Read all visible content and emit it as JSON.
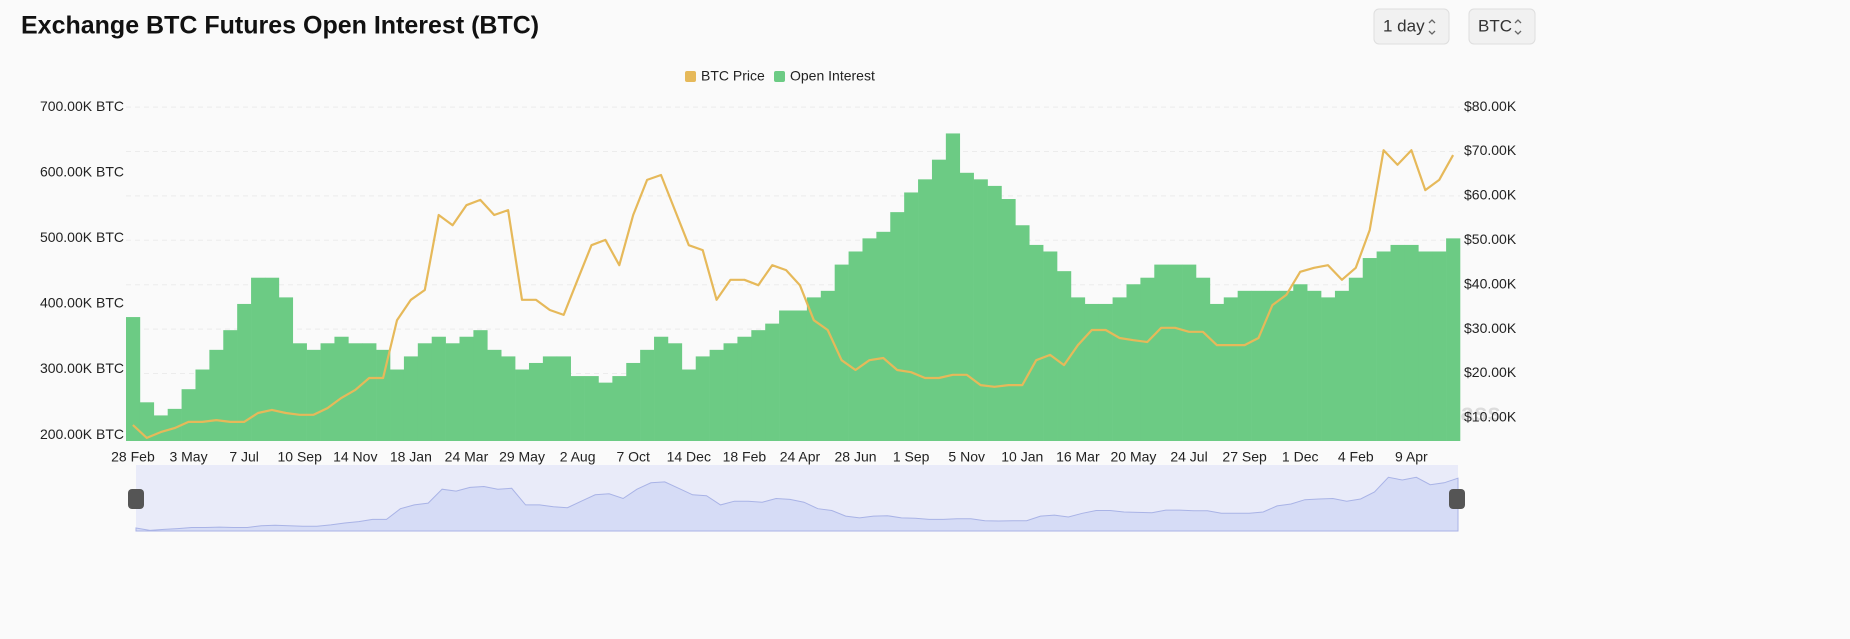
{
  "interval_selector": "1 day",
  "unit_selector": "BTC",
  "watermark": "coinglass",
  "chart_data": {
    "type": "combo",
    "title": "Exchange BTC Futures Open Interest (BTC)",
    "categories": [
      "28 Feb",
      null,
      null,
      null,
      "3 May",
      null,
      null,
      null,
      "7 Jul",
      null,
      null,
      null,
      "10 Sep",
      null,
      null,
      null,
      "14 Nov",
      null,
      null,
      null,
      "18 Jan",
      null,
      null,
      null,
      "24 Mar",
      null,
      null,
      null,
      "29 May",
      null,
      null,
      null,
      "2 Aug",
      null,
      null,
      null,
      "7 Oct",
      null,
      null,
      null,
      "14 Dec",
      null,
      null,
      null,
      "18 Feb",
      null,
      null,
      null,
      "24 Apr",
      null,
      null,
      null,
      "28 Jun",
      null,
      null,
      null,
      "1 Sep",
      null,
      null,
      null,
      "5 Nov",
      null,
      null,
      null,
      "10 Jan",
      null,
      null,
      null,
      "16 Mar",
      null,
      null,
      null,
      "20 May",
      null,
      null,
      null,
      "24 Jul",
      null,
      null,
      null,
      "27 Sep",
      null,
      null,
      null,
      "1 Dec",
      null,
      null,
      null,
      "4 Feb",
      null,
      null,
      null,
      "9 Apr",
      null,
      null,
      null
    ],
    "series": [
      {
        "name": "BTC Price",
        "type": "line",
        "axis": "y2",
        "color": "#e6b95a",
        "values": [
          8400,
          5500,
          6800,
          7700,
          9100,
          9100,
          9500,
          9100,
          9100,
          11100,
          11800,
          11100,
          10700,
          10700,
          12200,
          14500,
          16300,
          19000,
          19000,
          32000,
          36600,
          38800,
          55700,
          53400,
          57900,
          59100,
          55700,
          56800,
          36600,
          36600,
          34300,
          33200,
          41100,
          48900,
          50100,
          44400,
          55700,
          63600,
          64700,
          56800,
          48900,
          47800,
          36600,
          41100,
          41100,
          39900,
          44400,
          43300,
          39900,
          32000,
          29800,
          23000,
          20800,
          23000,
          23500,
          20800,
          20300,
          19000,
          19000,
          19700,
          19700,
          17400,
          17000,
          17400,
          17400,
          23000,
          24200,
          21900,
          26400,
          29800,
          29800,
          28000,
          27500,
          27100,
          30300,
          30300,
          29400,
          29400,
          26400,
          26400,
          26400,
          28000,
          35400,
          37700,
          42900,
          43800,
          44400,
          41100,
          43800,
          52300,
          70300,
          67000,
          70300,
          61300,
          63600,
          69200
        ]
      },
      {
        "name": "Open Interest",
        "type": "bar",
        "axis": "y",
        "color": "#6ccb84",
        "values": [
          380000,
          250000,
          230000,
          240000,
          270000,
          300000,
          330000,
          360000,
          400000,
          440000,
          440000,
          410000,
          340000,
          330000,
          340000,
          350000,
          340000,
          340000,
          330000,
          300000,
          320000,
          340000,
          350000,
          340000,
          350000,
          360000,
          330000,
          320000,
          300000,
          310000,
          320000,
          320000,
          290000,
          290000,
          280000,
          290000,
          310000,
          330000,
          350000,
          340000,
          300000,
          320000,
          330000,
          340000,
          350000,
          360000,
          370000,
          390000,
          390000,
          410000,
          420000,
          460000,
          480000,
          500000,
          510000,
          540000,
          570000,
          590000,
          620000,
          660000,
          600000,
          590000,
          580000,
          560000,
          520000,
          490000,
          480000,
          450000,
          410000,
          400000,
          400000,
          410000,
          430000,
          440000,
          460000,
          460000,
          460000,
          440000,
          400000,
          410000,
          420000,
          420000,
          420000,
          420000,
          430000,
          420000,
          410000,
          420000,
          440000,
          470000,
          480000,
          490000,
          490000,
          480000,
          480000,
          500000
        ]
      }
    ],
    "ylim": [
      191000,
      711000
    ],
    "yticks": [
      {
        "value": 200000,
        "label": "200.00K BTC"
      },
      {
        "value": 300000,
        "label": "300.00K BTC"
      },
      {
        "value": 400000,
        "label": "400.00K BTC"
      },
      {
        "value": 500000,
        "label": "500.00K BTC"
      },
      {
        "value": 600000,
        "label": "600.00K BTC"
      },
      {
        "value": 700000,
        "label": "700.00K BTC"
      }
    ],
    "y2lim": [
      4800,
      81600
    ],
    "y2ticks": [
      {
        "value": 10000,
        "label": "$10.00K"
      },
      {
        "value": 20000,
        "label": "$20.00K"
      },
      {
        "value": 30000,
        "label": "$30.00K"
      },
      {
        "value": 40000,
        "label": "$40.00K"
      },
      {
        "value": 50000,
        "label": "$50.00K"
      },
      {
        "value": 60000,
        "label": "$60.00K"
      },
      {
        "value": 70000,
        "label": "$70.00K"
      },
      {
        "value": 80000,
        "label": "$80.00K"
      }
    ],
    "grid": true,
    "legend": "top"
  }
}
